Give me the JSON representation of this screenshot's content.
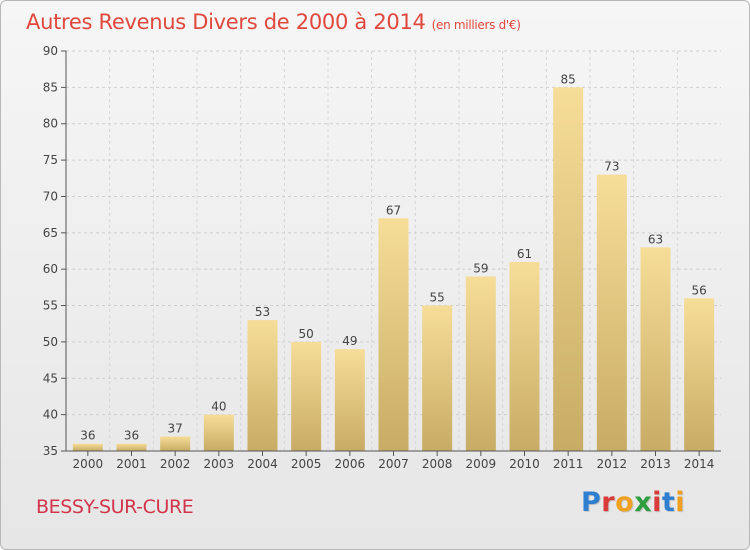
{
  "header": {
    "title": "Autres Revenus Divers de 2000 à 2014",
    "unit_note": "(en milliers d'€)"
  },
  "footer": {
    "commune": "BESSY-SUR-CURE",
    "brand_letters": [
      "P",
      "r",
      "o",
      "x",
      "i",
      "t",
      "i"
    ]
  },
  "colors": {
    "title": "#e0473d",
    "commune": "#d2354b",
    "bar_light": "#f6dd98",
    "bar_dark": "#c8ac65",
    "brand": [
      "#2e7fd0",
      "#d93a3a",
      "#f0a020",
      "#2e9e3e",
      "#d93a3a",
      "#2e7fd0",
      "#f0a020"
    ]
  },
  "chart_data": {
    "type": "bar",
    "categories": [
      "2000",
      "2001",
      "2002",
      "2003",
      "2004",
      "2005",
      "2006",
      "2007",
      "2008",
      "2009",
      "2010",
      "2011",
      "2012",
      "2013",
      "2014"
    ],
    "values": [
      36,
      36,
      37,
      40,
      53,
      50,
      49,
      67,
      55,
      59,
      61,
      85,
      73,
      63,
      56
    ],
    "ylim": [
      35,
      90
    ],
    "yticks": [
      35,
      40,
      45,
      50,
      55,
      60,
      65,
      70,
      75,
      80,
      85,
      90
    ],
    "grid": true
  }
}
